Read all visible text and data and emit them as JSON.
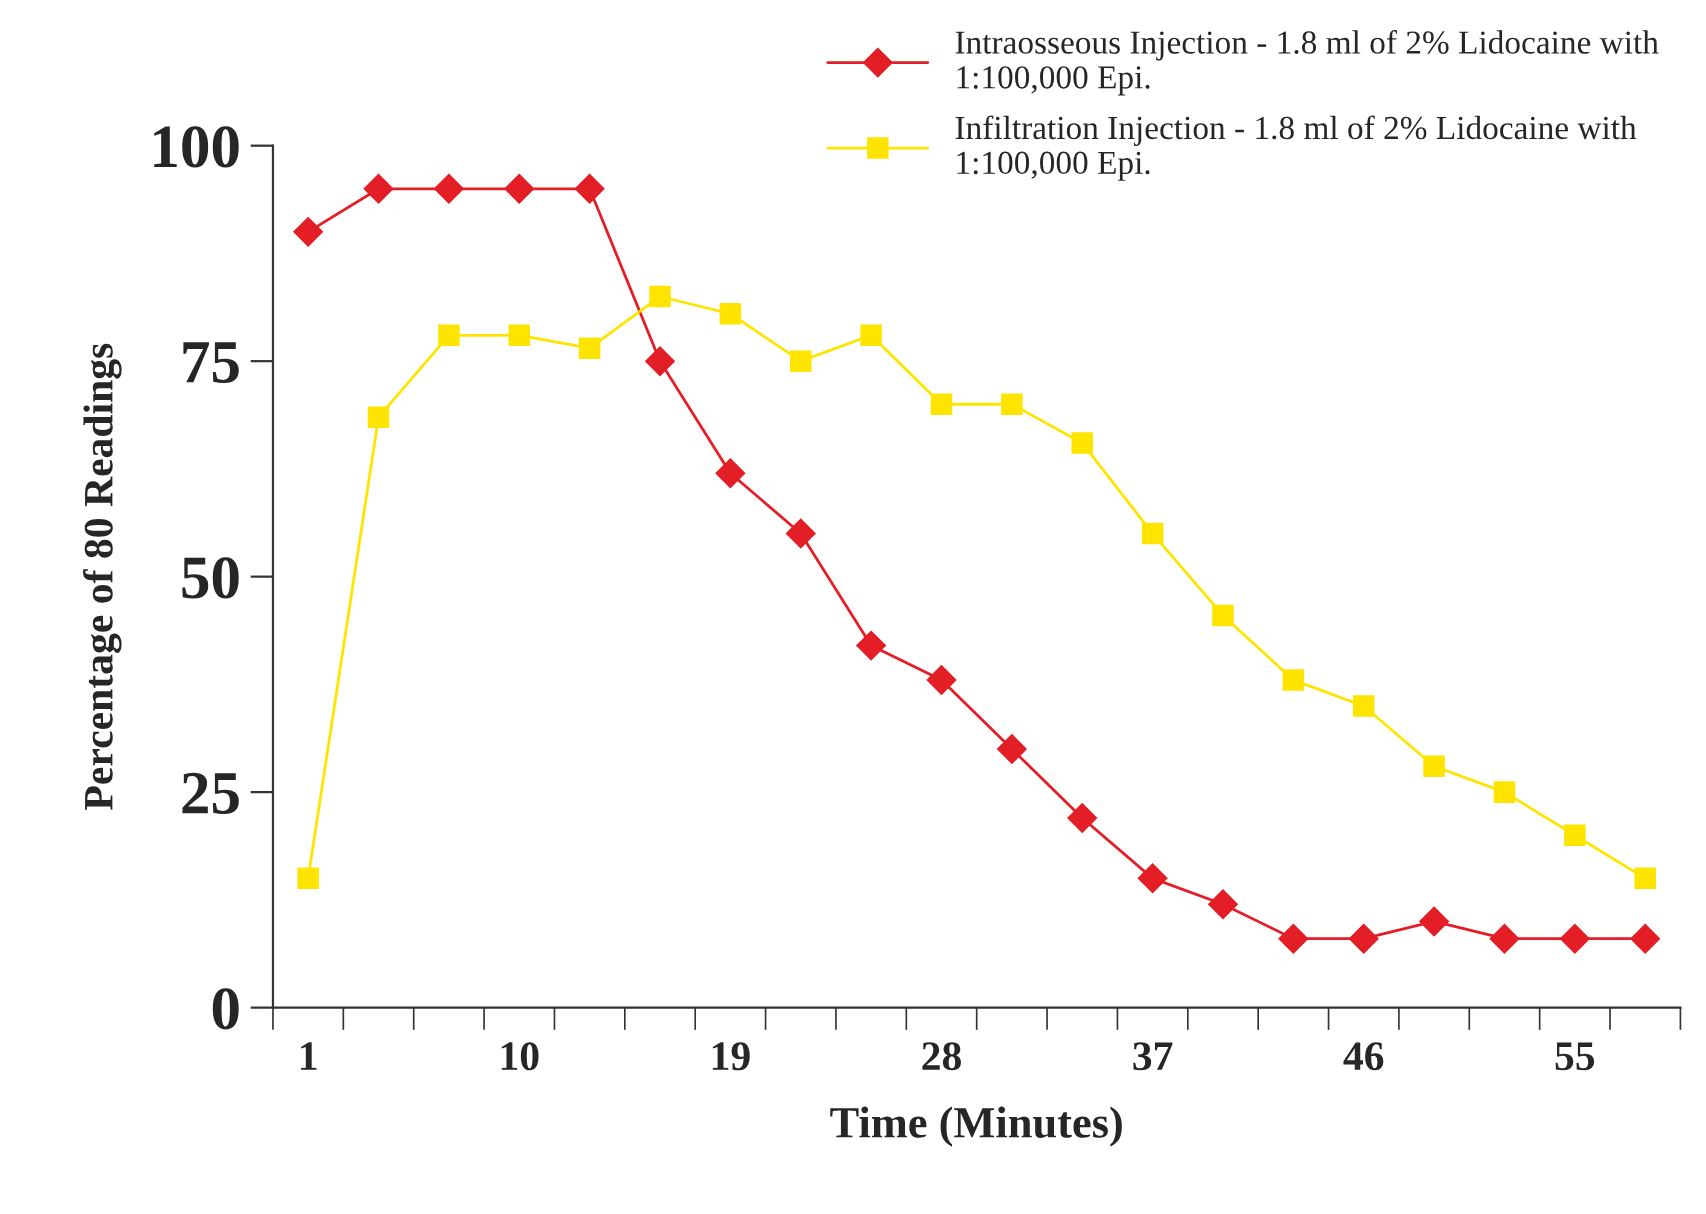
{
  "chart_data": {
    "type": "line",
    "xlabel": "Time (Minutes)",
    "ylabel": "Percentage of 80 Readings",
    "categories": [
      "1",
      null,
      null,
      "10",
      null,
      null,
      "19",
      null,
      null,
      "28",
      null,
      null,
      "37",
      null,
      null,
      "46",
      null,
      null,
      "55",
      null
    ],
    "series": [
      {
        "name": "Intraosseous Injection - 1.8 ml of 2% Lidocaine with 1:100,000 Epi.",
        "color": "#e41e26",
        "marker": "diamond",
        "values": [
          90,
          95,
          95,
          95,
          95,
          75,
          62,
          55,
          42,
          38,
          30,
          22,
          15,
          12,
          8,
          8,
          10,
          8,
          8,
          8
        ]
      },
      {
        "name": "Infiltration Injection - 1.8 ml of 2% Lidocaine with 1:100,000 Epi.",
        "color": "#ffe400",
        "marker": "square",
        "values": [
          15,
          68.5,
          78,
          78,
          76.5,
          82.5,
          80.5,
          75,
          78,
          70,
          70,
          65.5,
          55,
          45.5,
          38,
          35,
          28,
          25,
          20,
          15
        ]
      }
    ],
    "ylim": [
      0,
      100
    ],
    "yticks": [
      0,
      25,
      50,
      75,
      100
    ],
    "grid": false,
    "legend": "top right",
    "line_style": "solid"
  }
}
